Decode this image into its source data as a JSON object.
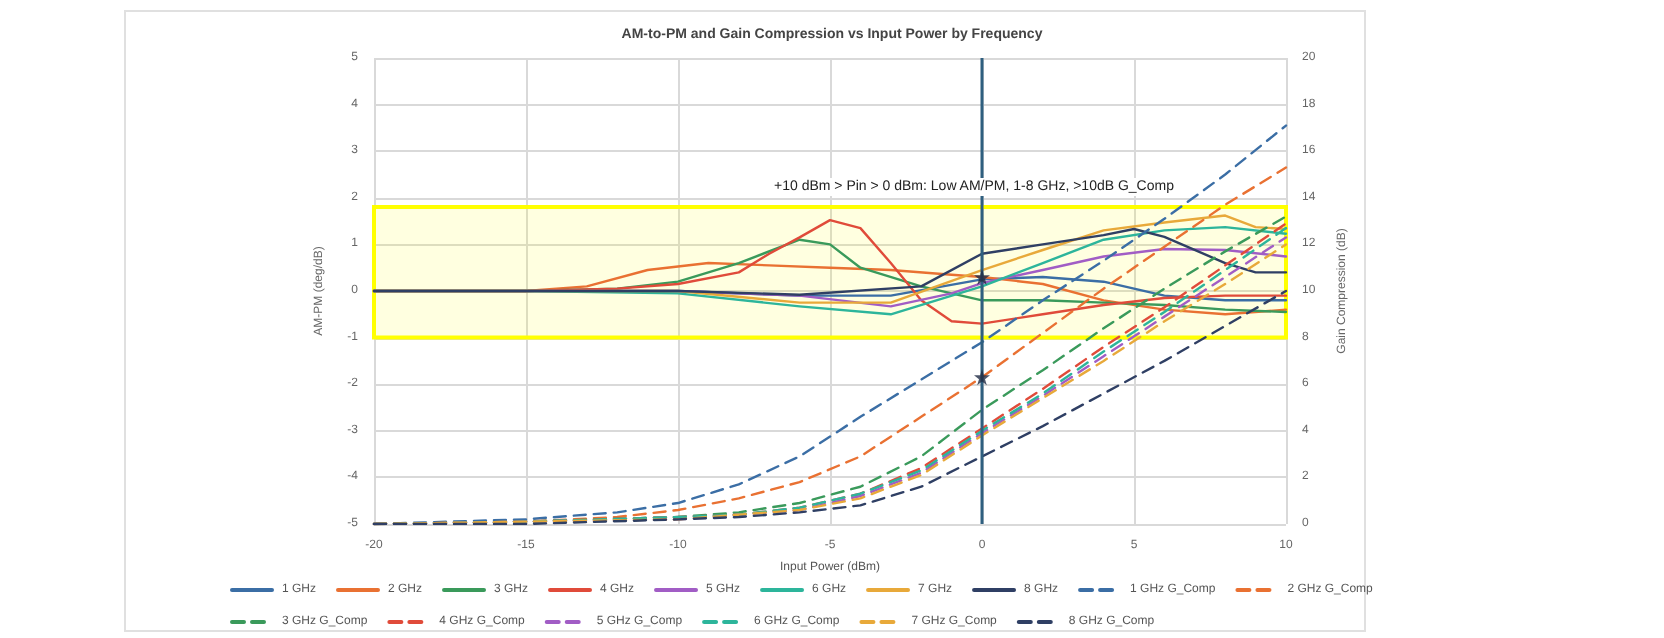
{
  "chart_data": {
    "type": "line",
    "title": "AM-to-PM and Gain Compression vs Input Power by Frequency",
    "xlabel": "Input Power (dBm)",
    "ylabel": "AM-PM (deg/dB)",
    "y2label": "Gain Compression (dB)",
    "annotations": [
      "+10 dBm > Pin > 0 dBm: Low AM/PM, 1-8 GHz, >10dB G_Comp"
    ],
    "xlim": [
      -20,
      10
    ],
    "xticks": [
      -20,
      -15,
      -10,
      -5,
      0,
      5,
      10
    ],
    "ylim": [
      -5,
      5
    ],
    "yticks": [
      -5,
      -4,
      -3,
      -2,
      -1,
      0,
      1,
      2,
      3,
      4,
      5
    ],
    "y2lim": [
      0,
      20
    ],
    "y2ticks": [
      0,
      2,
      4,
      6,
      8,
      10,
      12,
      14,
      16,
      18,
      20
    ],
    "grid": true,
    "legend": "bottom",
    "marker": "none",
    "line_style": "solid",
    "ref_lines": [
      {
        "axis": "x",
        "value": 0,
        "color": "#2f5f7f"
      }
    ],
    "bands": [
      {
        "axis": "y2",
        "from": 8,
        "to": 13.6,
        "color": "#ffff00"
      }
    ],
    "series": [
      {
        "name": "1 GHz",
        "color": "#3b6ea5",
        "x": [
          -20,
          -15,
          -10,
          -6,
          -3,
          0,
          2,
          4,
          6,
          8,
          10
        ],
        "values": [
          0,
          0,
          0,
          -0.1,
          -0.1,
          0.25,
          0.3,
          0.2,
          -0.1,
          -0.2,
          -0.2
        ]
      },
      {
        "name": "2 GHz",
        "color": "#e97132",
        "x": [
          -20,
          -15,
          -13,
          -11,
          -9,
          -7,
          -5,
          -3,
          -1,
          0,
          2,
          4,
          6,
          8,
          10
        ],
        "values": [
          0,
          0,
          0.1,
          0.45,
          0.6,
          0.55,
          0.5,
          0.45,
          0.35,
          0.3,
          0.15,
          -0.2,
          -0.4,
          -0.5,
          -0.4
        ]
      },
      {
        "name": "3 GHz",
        "color": "#3a9a5b",
        "x": [
          -20,
          -15,
          -12,
          -10,
          -8,
          -6,
          -5,
          -4,
          -2,
          0,
          2,
          4,
          6,
          8,
          10
        ],
        "values": [
          0,
          0,
          0.05,
          0.2,
          0.6,
          1.1,
          1.0,
          0.5,
          0.1,
          -0.2,
          -0.2,
          -0.25,
          -0.3,
          -0.4,
          -0.45
        ]
      },
      {
        "name": "4 GHz",
        "color": "#e04b3a",
        "x": [
          -20,
          -15,
          -12,
          -10,
          -8,
          -7,
          -6,
          -5,
          -4,
          -3,
          -2,
          -1,
          0,
          2,
          4,
          6,
          8,
          10
        ],
        "values": [
          0,
          0,
          0.05,
          0.15,
          0.4,
          0.8,
          1.15,
          1.52,
          1.35,
          0.6,
          -0.2,
          -0.65,
          -0.7,
          -0.5,
          -0.3,
          -0.15,
          -0.1,
          -0.1
        ]
      },
      {
        "name": "5 GHz",
        "color": "#a15dc5",
        "x": [
          -20,
          -15,
          -10,
          -6,
          -3,
          -1,
          0,
          2,
          4,
          6,
          8,
          10
        ],
        "values": [
          0,
          0,
          0,
          -0.1,
          -0.33,
          -0.05,
          0.17,
          0.45,
          0.74,
          0.9,
          0.88,
          0.74
        ]
      },
      {
        "name": "6 GHz",
        "color": "#2db59b",
        "x": [
          -20,
          -15,
          -10,
          -6,
          -3,
          0,
          2,
          4,
          6,
          8,
          10
        ],
        "values": [
          0,
          0,
          -0.05,
          -0.33,
          -0.5,
          0.1,
          0.6,
          1.1,
          1.3,
          1.37,
          1.23
        ]
      },
      {
        "name": "7 GHz",
        "color": "#e8a93a",
        "x": [
          -20,
          -15,
          -10,
          -6,
          -3,
          0,
          2,
          4,
          6,
          8,
          9,
          10
        ],
        "values": [
          0,
          0,
          0,
          -0.25,
          -0.25,
          0.45,
          0.88,
          1.3,
          1.47,
          1.62,
          1.37,
          1.33
        ]
      },
      {
        "name": "8 GHz",
        "color": "#2f3f64",
        "x": [
          -20,
          -15,
          -10,
          -6,
          -2,
          0,
          2,
          4,
          5,
          6,
          8,
          9,
          10
        ],
        "values": [
          0,
          0,
          0,
          -0.08,
          0.1,
          0.8,
          1.0,
          1.2,
          1.33,
          1.16,
          0.6,
          0.4,
          0.4
        ]
      },
      {
        "name": "1 GHz G_Comp",
        "color": "#3b6ea5",
        "axis": "y2",
        "line_style": "dashed",
        "x": [
          -20,
          -15,
          -12,
          -10,
          -8,
          -6,
          -4,
          -2,
          0,
          2,
          4,
          6,
          8,
          10
        ],
        "values": [
          0,
          0.2,
          0.5,
          0.9,
          1.7,
          2.9,
          4.6,
          6.2,
          7.8,
          9.6,
          11.3,
          13.1,
          15.0,
          17.1
        ]
      },
      {
        "name": "2 GHz G_Comp",
        "color": "#e97132",
        "axis": "y2",
        "line_style": "dashed",
        "x": [
          -20,
          -15,
          -12,
          -10,
          -8,
          -6,
          -4,
          -2,
          0,
          2,
          4,
          6,
          8,
          10
        ],
        "values": [
          0,
          0.1,
          0.3,
          0.6,
          1.1,
          1.8,
          2.9,
          4.6,
          6.3,
          8.2,
          10.1,
          11.9,
          13.7,
          15.3
        ]
      },
      {
        "name": "3 GHz G_Comp",
        "color": "#3a9a5b",
        "axis": "y2",
        "line_style": "dashed",
        "x": [
          -20,
          -15,
          -10,
          -8,
          -6,
          -4,
          -2,
          0,
          2,
          4,
          6,
          8,
          10
        ],
        "values": [
          0,
          0.1,
          0.3,
          0.5,
          0.9,
          1.6,
          2.9,
          4.9,
          6.6,
          8.4,
          10.1,
          11.7,
          13.2
        ]
      },
      {
        "name": "4 GHz G_Comp",
        "color": "#e04b3a",
        "axis": "y2",
        "line_style": "dashed",
        "x": [
          -20,
          -15,
          -10,
          -8,
          -6,
          -4,
          -2,
          0,
          2,
          4,
          6,
          8,
          10
        ],
        "values": [
          0,
          0.1,
          0.3,
          0.4,
          0.7,
          1.3,
          2.4,
          4.1,
          5.8,
          7.6,
          9.3,
          11.1,
          12.9
        ]
      },
      {
        "name": "5 GHz G_Comp",
        "color": "#a15dc5",
        "axis": "y2",
        "line_style": "dashed",
        "x": [
          -20,
          -15,
          -10,
          -8,
          -6,
          -4,
          -2,
          0,
          2,
          4,
          6,
          8,
          10
        ],
        "values": [
          0,
          0.1,
          0.2,
          0.4,
          0.6,
          1.2,
          2.2,
          3.9,
          5.5,
          7.2,
          8.9,
          10.6,
          12.3
        ]
      },
      {
        "name": "6 GHz G_Comp",
        "color": "#2db59b",
        "axis": "y2",
        "line_style": "dashed",
        "x": [
          -20,
          -15,
          -10,
          -8,
          -6,
          -4,
          -2,
          0,
          2,
          4,
          6,
          8,
          10
        ],
        "values": [
          0,
          0.1,
          0.3,
          0.4,
          0.7,
          1.3,
          2.3,
          4.0,
          5.6,
          7.4,
          9.1,
          10.9,
          12.7
        ]
      },
      {
        "name": "7 GHz G_Comp",
        "color": "#e8a93a",
        "axis": "y2",
        "line_style": "dashed",
        "x": [
          -20,
          -15,
          -10,
          -8,
          -6,
          -4,
          -2,
          0,
          2,
          4,
          6,
          8,
          10
        ],
        "values": [
          0,
          0.1,
          0.2,
          0.4,
          0.6,
          1.1,
          2.1,
          3.8,
          5.4,
          7.0,
          8.7,
          10.3,
          12.0
        ]
      },
      {
        "name": "8 GHz G_Comp",
        "color": "#2f3f64",
        "axis": "y2",
        "line_style": "dashed",
        "x": [
          -20,
          -15,
          -10,
          -8,
          -6,
          -4,
          -2,
          0,
          2,
          4,
          6,
          8,
          10
        ],
        "values": [
          0,
          0,
          0.2,
          0.3,
          0.5,
          0.8,
          1.6,
          2.9,
          4.2,
          5.6,
          7.0,
          8.5,
          10.0
        ]
      },
      {
        "type": "scatter",
        "color": "#1f2a44",
        "axis": "y2",
        "marker": "star",
        "x": [
          0,
          0
        ],
        "values": [
          10.6,
          6.3
        ]
      }
    ]
  }
}
